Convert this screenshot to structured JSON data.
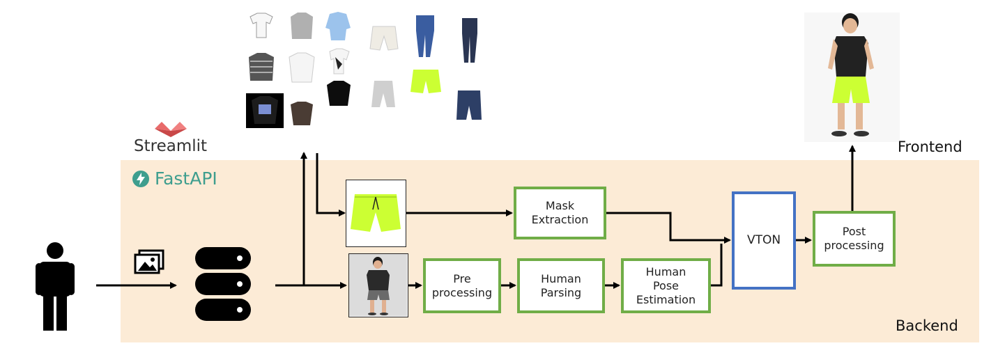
{
  "labels": {
    "streamlit": "Streamlit",
    "fastapi": "FastAPI",
    "frontend": "Frontend",
    "backend": "Backend"
  },
  "boxes": {
    "mask_extraction": "Mask\nExtraction",
    "pre_processing": "Pre\nprocessing",
    "human_parsing": "Human\nParsing",
    "human_pose_estimation": "Human\nPose\nEstimation",
    "vton": "VTON",
    "post_processing": "Post\nprocessing"
  },
  "icons": {
    "user": "person-icon",
    "upload": "image-upload-icon",
    "storage": "database-icon",
    "streamlit_logo": "streamlit-logo-icon",
    "fastapi_logo": "fastapi-logo-icon"
  },
  "colors": {
    "backend_bg": "#fcebd6",
    "process_border": "#70ad47",
    "model_border": "#4472c4",
    "fastapi_teal": "#3e9e8e",
    "streamlit_red": "#e05a5a",
    "garment_neon": "#ccff33"
  }
}
